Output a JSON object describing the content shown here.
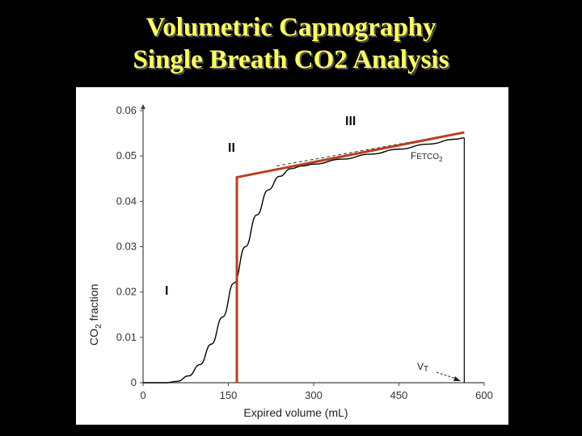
{
  "slide": {
    "title_line1": "Volumetric Capnography",
    "title_line2": "Single Breath CO2 Analysis"
  },
  "colors": {
    "background": "#000000",
    "title": "#ffff66",
    "model_line": "#b5401f",
    "curve": "#000000"
  },
  "chart_data": {
    "type": "line",
    "xlabel": "Expired volume (mL)",
    "ylabel_main": "CO",
    "ylabel_sub": "2",
    "ylabel_tail": " fraction",
    "xlim": [
      0,
      600
    ],
    "ylim": [
      0,
      0.06
    ],
    "x_ticks": [
      "0",
      "150",
      "300",
      "450",
      "600"
    ],
    "y_ticks": [
      "0",
      "0.01",
      "0.02",
      "0.03",
      "0.04",
      "0.05",
      "0.06"
    ],
    "grid": false,
    "series": [
      {
        "x": [
          0,
          40,
          60,
          80,
          100,
          120,
          140,
          160,
          180,
          200,
          220,
          240,
          260,
          280,
          300,
          350,
          400,
          450,
          500,
          550,
          565
        ],
        "y": [
          0,
          0,
          0.0003,
          0.0015,
          0.004,
          0.0085,
          0.0145,
          0.022,
          0.03,
          0.037,
          0.0425,
          0.0455,
          0.0472,
          0.0478,
          0.0482,
          0.0493,
          0.0504,
          0.0515,
          0.0526,
          0.0537,
          0.054
        ]
      },
      {
        "x": [
          165,
          165,
          565
        ],
        "y": [
          0,
          0.0453,
          0.0552
        ]
      }
    ],
    "annotations": {
      "phase_1": "I",
      "phase_2": "II",
      "phase_3": "III",
      "fetco2_main": "F",
      "fetco2_mid": "ETCO",
      "fetco2_sub": "2",
      "vt_main": "V",
      "vt_sub": "T"
    }
  }
}
